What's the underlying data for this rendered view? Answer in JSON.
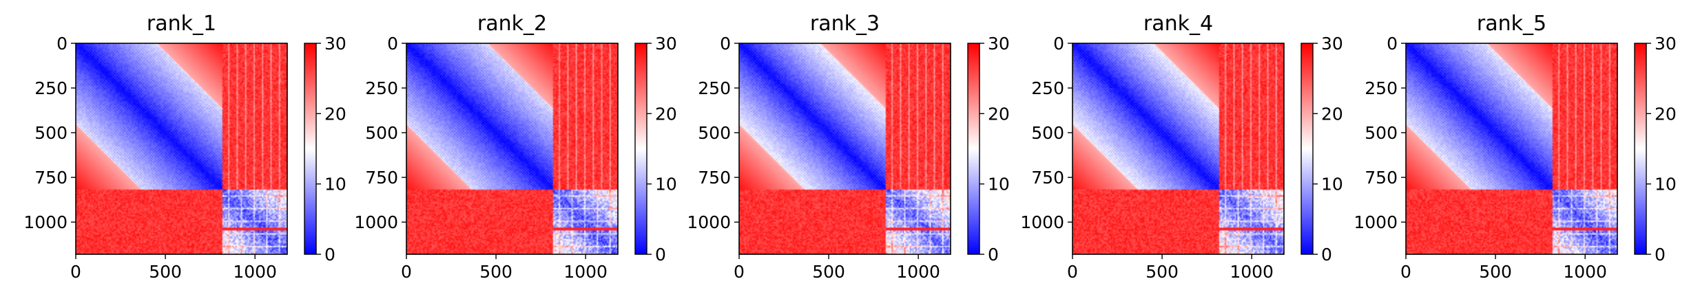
{
  "chart_data": [
    {
      "type": "heatmap",
      "title": "rank_1",
      "xlabel": "",
      "ylabel": "",
      "matrix_size": 1180,
      "block_split": 820,
      "xlim": [
        0,
        1180
      ],
      "ylim": [
        1180,
        0
      ],
      "x_ticks": [
        0,
        500,
        1000
      ],
      "y_ticks": [
        0,
        250,
        500,
        750,
        1000
      ],
      "colorbar": {
        "colormap": "bwr",
        "range": [
          0,
          30
        ],
        "ticks": [
          0,
          10,
          20,
          30
        ]
      },
      "diagonal_value": 0,
      "top_block_corner_value": 20,
      "off_block_value": 30,
      "bottom_block_value": 5
    },
    {
      "type": "heatmap",
      "title": "rank_2",
      "xlabel": "",
      "ylabel": "",
      "matrix_size": 1180,
      "block_split": 820,
      "xlim": [
        0,
        1180
      ],
      "ylim": [
        1180,
        0
      ],
      "x_ticks": [
        0,
        500,
        1000
      ],
      "y_ticks": [
        0,
        250,
        500,
        750,
        1000
      ],
      "colorbar": {
        "colormap": "bwr",
        "range": [
          0,
          30
        ],
        "ticks": [
          0,
          10,
          20,
          30
        ]
      },
      "diagonal_value": 0,
      "top_block_corner_value": 20,
      "off_block_value": 30,
      "bottom_block_value": 5
    },
    {
      "type": "heatmap",
      "title": "rank_3",
      "xlabel": "",
      "ylabel": "",
      "matrix_size": 1180,
      "block_split": 820,
      "xlim": [
        0,
        1180
      ],
      "ylim": [
        1180,
        0
      ],
      "x_ticks": [
        0,
        500,
        1000
      ],
      "y_ticks": [
        0,
        250,
        500,
        750,
        1000
      ],
      "colorbar": {
        "colormap": "bwr",
        "range": [
          0,
          30
        ],
        "ticks": [
          0,
          10,
          20,
          30
        ]
      },
      "diagonal_value": 0,
      "top_block_corner_value": 22,
      "off_block_value": 30,
      "bottom_block_value": 6
    },
    {
      "type": "heatmap",
      "title": "rank_4",
      "xlabel": "",
      "ylabel": "",
      "matrix_size": 1180,
      "block_split": 820,
      "xlim": [
        0,
        1180
      ],
      "ylim": [
        1180,
        0
      ],
      "x_ticks": [
        0,
        500,
        1000
      ],
      "y_ticks": [
        0,
        250,
        500,
        750,
        1000
      ],
      "colorbar": {
        "colormap": "bwr",
        "range": [
          0,
          30
        ],
        "ticks": [
          0,
          10,
          20,
          30
        ]
      },
      "diagonal_value": 0,
      "top_block_corner_value": 22,
      "off_block_value": 30,
      "bottom_block_value": 6
    },
    {
      "type": "heatmap",
      "title": "rank_5",
      "xlabel": "",
      "ylabel": "",
      "matrix_size": 1180,
      "block_split": 820,
      "xlim": [
        0,
        1180
      ],
      "ylim": [
        1180,
        0
      ],
      "x_ticks": [
        0,
        500,
        1000
      ],
      "y_ticks": [
        0,
        250,
        500,
        750,
        1000
      ],
      "colorbar": {
        "colormap": "bwr",
        "range": [
          0,
          30
        ],
        "ticks": [
          0,
          10,
          20,
          30
        ]
      },
      "diagonal_value": 0,
      "top_block_corner_value": 21,
      "off_block_value": 30,
      "bottom_block_value": 5
    }
  ]
}
